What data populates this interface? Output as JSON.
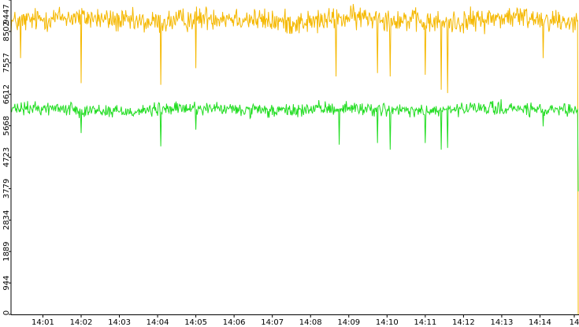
{
  "chart_data": {
    "type": "line",
    "title": "",
    "xlabel": "",
    "ylabel": "",
    "ylim": [
      0,
      9447
    ],
    "x_range": [
      "14:00:10",
      "14:15:00"
    ],
    "y_ticks": [
      "0",
      "944",
      "1889",
      "2834",
      "3779",
      "4723",
      "5668",
      "6612",
      "7557",
      "8502",
      "9447"
    ],
    "x_ticks": [
      "14:01",
      "14:02",
      "14:03",
      "14:04",
      "14:05",
      "14:06",
      "14:07",
      "14:08",
      "14:09",
      "14:10",
      "14:11",
      "14:12",
      "14:13",
      "14:14",
      "14"
    ],
    "grid": false,
    "legend": "none",
    "series": [
      {
        "color": "#f5b800",
        "baseline": 8850,
        "noise": 320,
        "end_value": 0,
        "dips": [
          {
            "time": "14:00:25",
            "value": 7700
          },
          {
            "time": "14:02:00",
            "value": 6950
          },
          {
            "time": "14:04:05",
            "value": 6900
          },
          {
            "time": "14:05:00",
            "value": 7400
          },
          {
            "time": "14:08:40",
            "value": 7150
          },
          {
            "time": "14:09:45",
            "value": 7250
          },
          {
            "time": "14:10:05",
            "value": 7150
          },
          {
            "time": "14:11:00",
            "value": 7200
          },
          {
            "time": "14:11:25",
            "value": 6750
          },
          {
            "time": "14:11:35",
            "value": 6650
          },
          {
            "time": "14:14:05",
            "value": 7700
          }
        ]
      },
      {
        "color": "#22dd22",
        "baseline": 6150,
        "noise": 180,
        "end_value": 3700,
        "dips": [
          {
            "time": "14:02:00",
            "value": 5450
          },
          {
            "time": "14:04:05",
            "value": 5050
          },
          {
            "time": "14:05:00",
            "value": 5550
          },
          {
            "time": "14:08:45",
            "value": 5100
          },
          {
            "time": "14:09:45",
            "value": 5150
          },
          {
            "time": "14:10:05",
            "value": 4950
          },
          {
            "time": "14:11:00",
            "value": 5150
          },
          {
            "time": "14:11:25",
            "value": 4950
          },
          {
            "time": "14:11:35",
            "value": 5000
          },
          {
            "time": "14:14:05",
            "value": 5650
          }
        ]
      }
    ]
  }
}
